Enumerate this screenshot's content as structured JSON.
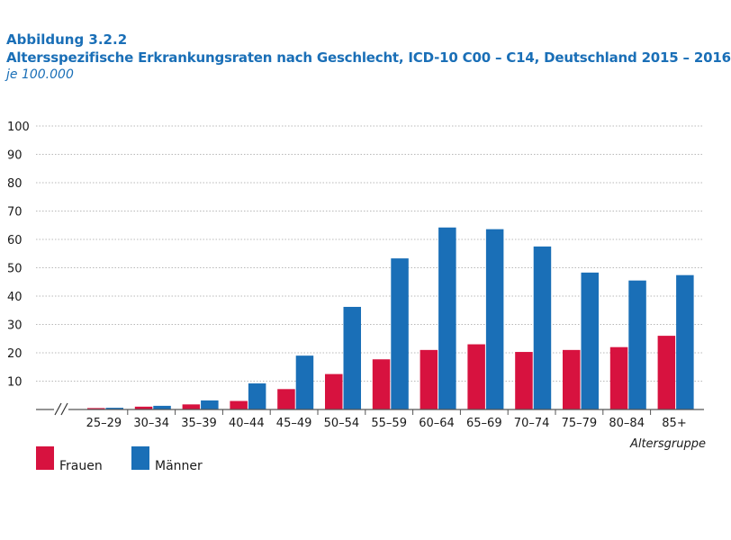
{
  "figure": {
    "label": "Abbildung 3.2.2",
    "title": "Altersspezifische Erkrankungsraten nach Geschlecht, ICD-10 C00 – C14, Deutschland 2015 – 2016",
    "subtitle": "je 100.000"
  },
  "colors": {
    "frauen": "#d7123f",
    "maenner": "#1a6fb7",
    "grid": "#b8b8b8",
    "axis": "#555555"
  },
  "chart_data": {
    "type": "bar",
    "categories": [
      "25–29",
      "30–34",
      "35–39",
      "40–44",
      "45–49",
      "50–54",
      "55–59",
      "60–64",
      "65–69",
      "70–74",
      "75–79",
      "80–84",
      "85+"
    ],
    "series": [
      {
        "name": "Frauen",
        "values": [
          0.5,
          1.0,
          1.8,
          3.0,
          7.2,
          12.5,
          17.7,
          21.0,
          23.0,
          20.3,
          21.0,
          22.0,
          26.0
        ]
      },
      {
        "name": "Männer",
        "values": [
          0.6,
          1.3,
          3.2,
          9.2,
          19.0,
          36.2,
          53.3,
          64.2,
          63.6,
          57.5,
          48.3,
          45.5,
          47.4
        ]
      }
    ],
    "xlabel": "Altersgruppe",
    "ylabel": "",
    "ylim": [
      0,
      100
    ],
    "yticks": [
      100,
      90,
      80,
      70,
      60,
      50,
      40,
      30,
      20,
      10
    ],
    "grid": true,
    "legend_position": "bottom-left"
  }
}
